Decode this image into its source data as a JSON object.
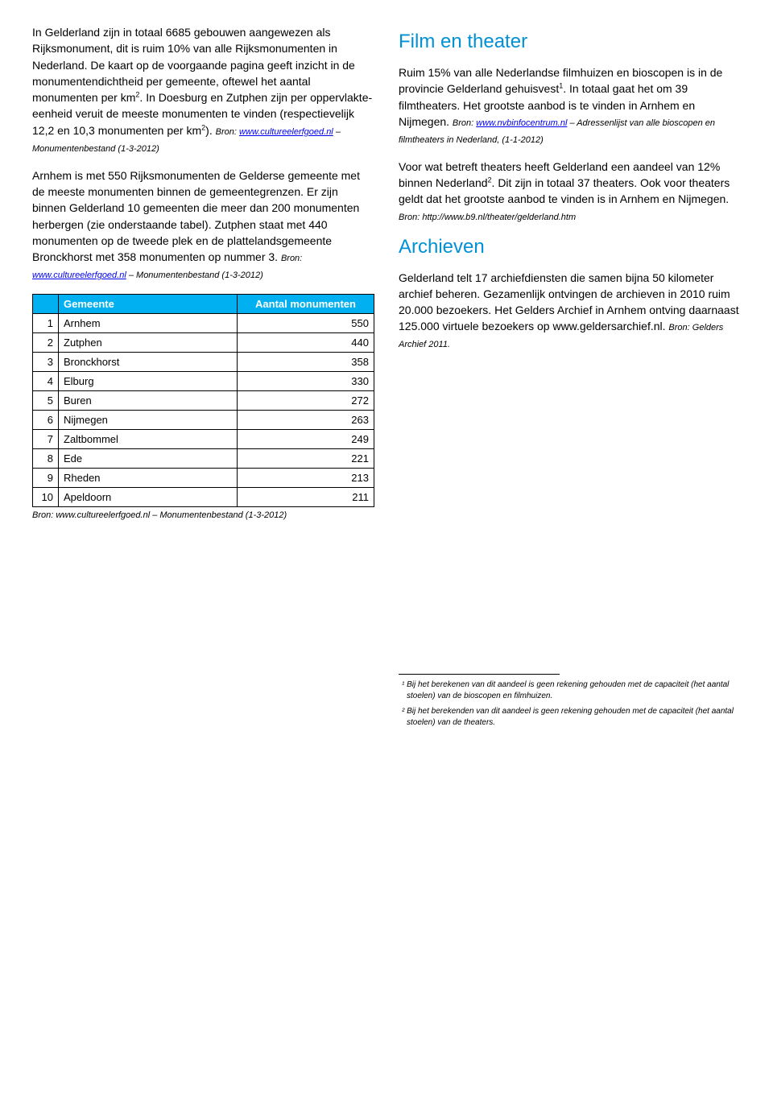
{
  "left": {
    "para1_a": "In Gelderland zijn in totaal 6685 gebouwen aangewezen als Rijksmonument, dit is ruim 10% van alle Rijksmonumenten in Nederland. De kaart op de voorgaande pagina geeft inzicht in de monumentendichtheid per gemeente, oftewel het aantal monumenten per km",
    "para1_b": ". In Doesburg en Zutphen zijn per oppervlakte-eenheid veruit de meeste monumenten te vinden (respectievelijk 12,2 en 10,3 monumenten per km",
    "para1_c": "). ",
    "para1_source_prefix": "Bron: ",
    "para1_source_link": "www.cultureelerfgoed.nl",
    "para1_source_suffix": " – Monumentenbestand (1-3-2012)",
    "para2_a": "Arnhem is met 550 Rijksmonumenten de Gelderse gemeente met de meeste monumenten binnen de gemeentegrenzen. Er zijn binnen Gelderland 10 gemeenten die meer dan 200 monumenten herbergen (zie onderstaande tabel). Zutphen staat met 440 monumenten op de tweede plek en de plattelandsgemeente Bronckhorst met 358 monumenten op nummer 3. ",
    "para2_source_prefix": "Bron: ",
    "para2_source_link": "www.cultureelerfgoed.nl",
    "para2_source_suffix": " – Monumentenbestand (1-3-2012)",
    "table": {
      "header_rank": "",
      "header_gemeente": "Gemeente",
      "header_count": "Aantal monumenten",
      "rows": [
        {
          "rank": "1",
          "name": "Arnhem",
          "count": "550"
        },
        {
          "rank": "2",
          "name": "Zutphen",
          "count": "440"
        },
        {
          "rank": "3",
          "name": "Bronckhorst",
          "count": "358"
        },
        {
          "rank": "4",
          "name": "Elburg",
          "count": "330"
        },
        {
          "rank": "5",
          "name": "Buren",
          "count": "272"
        },
        {
          "rank": "6",
          "name": "Nijmegen",
          "count": "263"
        },
        {
          "rank": "7",
          "name": "Zaltbommel",
          "count": "249"
        },
        {
          "rank": "8",
          "name": "Ede",
          "count": "221"
        },
        {
          "rank": "9",
          "name": "Rheden",
          "count": "213"
        },
        {
          "rank": "10",
          "name": "Apeldoorn",
          "count": "211"
        }
      ],
      "source_prefix": "Bron: ",
      "source_link": "www.cultureelerfgoed.nl",
      "source_suffix": " – Monumentenbestand (1-3-2012)"
    }
  },
  "right": {
    "heading_film": "Film en theater",
    "para_film_a": "Ruim 15% van alle Nederlandse filmhuizen en bioscopen is in de provincie Gelderland gehuisvest",
    "para_film_b": ". In totaal gaat het om 39 filmtheaters. Het grootste aanbod is te vinden in Arnhem en Nijmegen. ",
    "para_film_source_prefix": "Bron: ",
    "para_film_source_link": "www.nvbinfocentrum.nl",
    "para_film_source_suffix": " – Adressenlijst van alle bioscopen en filmtheaters in Nederland, (1-1-2012)",
    "para_theater_a": "Voor wat betreft theaters heeft Gelderland een aandeel van 12% binnen Nederland",
    "para_theater_b": ". Dit zijn in totaal 37 theaters. Ook voor theaters geldt dat het grootste aanbod te vinden is in Arnhem en Nijmegen. ",
    "para_theater_source": "Bron: http://www.b9.nl/theater/gelderland.htm",
    "heading_archieven": "Archieven",
    "para_archieven_a": "Gelderland telt 17 archiefdiensten die samen bijna 50 kilometer archief beheren. Gezamenlijk ontvingen de archieven in 2010 ruim 20.000 bezoekers. Het Gelders Archief in Arnhem ontving daarnaast 125.000 virtuele bezoekers op www.geldersarchief.nl. ",
    "para_archieven_source": "Bron: Gelders Archief 2011.",
    "footnote1": "¹ Bij het berekenen van dit aandeel is geen rekening gehouden met de capaciteit (het aantal stoelen) van de bioscopen en filmhuizen.",
    "footnote2": "² Bij het berekenden van dit aandeel is geen rekening gehouden met de capaciteit (het aantal stoelen) van de theaters."
  },
  "colors": {
    "section_heading": "#0091d4",
    "table_header_bg": "#00b0f0",
    "table_header_fg": "#ffffff",
    "link": "#0000ee",
    "text": "#000000",
    "bg": "#ffffff"
  }
}
